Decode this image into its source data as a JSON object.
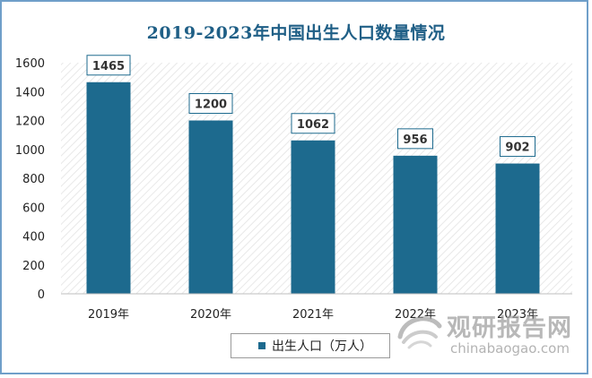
{
  "chart_data": {
    "type": "bar",
    "title": "2019-2023年中国出生人口数量情况",
    "categories": [
      "2019年",
      "2020年",
      "2021年",
      "2022年",
      "2023年"
    ],
    "series": [
      {
        "name": "出生人口（万人）",
        "values": [
          1465,
          1200,
          1062,
          956,
          902
        ],
        "color": "#1d6a8e"
      }
    ],
    "ylim": [
      0,
      1600
    ],
    "yticks": [
      0,
      200,
      400,
      600,
      800,
      1000,
      1200,
      1400,
      1600
    ],
    "data_labels": [
      "1465",
      "1200",
      "1062",
      "956",
      "902"
    ],
    "xlabel": "",
    "ylabel": "",
    "grid": false,
    "plot_background": "diagonal hatch",
    "legend_position": "bottom"
  },
  "colors": {
    "bar": "#1d6a8e",
    "title": "#1f5f86",
    "border": "#6f9fc9"
  },
  "watermark": {
    "cn": "观研报告网",
    "en": "chinabaogao.com",
    "logo_icon": "swirl-logo-icon"
  }
}
